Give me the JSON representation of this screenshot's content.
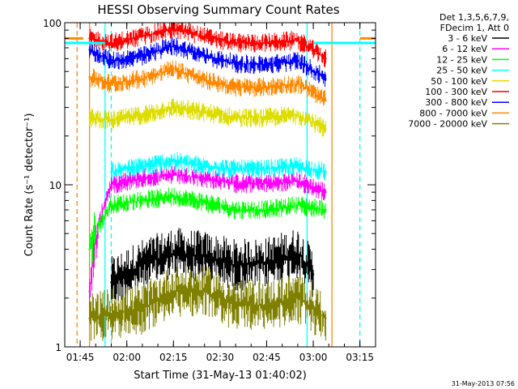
{
  "chart_data": {
    "type": "line",
    "title": "HESSI Observing Summary Count Rates",
    "xlabel": "Start Time (31-May-13 01:40:02)",
    "ylabel": "Count Rate (s⁻¹ detector⁻¹)",
    "yscale": "log",
    "ylim": [
      1,
      100
    ],
    "xlim": [
      "01:40:02",
      "03:20:02"
    ],
    "x_ticks": [
      "01:45",
      "02:00",
      "02:15",
      "02:30",
      "02:45",
      "03:00",
      "03:15"
    ],
    "y_ticks": [
      "1",
      "10",
      "100"
    ],
    "legend_header": [
      "Det 1,3,5,6,7,9,",
      "FDecim 1, Att 0"
    ],
    "legend_position": "right",
    "series": [
      {
        "name": "3 - 6 keV",
        "color": "#000000",
        "x": [
          "01:55",
          "02:05",
          "02:15",
          "02:25",
          "02:35",
          "02:45",
          "02:55",
          "03:00"
        ],
        "values": [
          2.5,
          3.2,
          3.8,
          3.6,
          3.2,
          3.3,
          3.8,
          2.8
        ]
      },
      {
        "name": "6 - 12 keV",
        "color": "#ff00ff",
        "x": [
          "01:48",
          "01:55",
          "02:05",
          "02:15",
          "02:25",
          "02:35",
          "02:45",
          "02:55",
          "03:04"
        ],
        "values": [
          2.2,
          10.0,
          11.0,
          11.5,
          11.0,
          10.2,
          10.2,
          10.5,
          9.0
        ]
      },
      {
        "name": "12 - 25 keV",
        "color": "#00ff00",
        "x": [
          "01:48",
          "01:55",
          "02:05",
          "02:15",
          "02:25",
          "02:35",
          "02:45",
          "02:55",
          "03:04"
        ],
        "values": [
          4.0,
          7.5,
          8.0,
          8.5,
          7.8,
          7.0,
          7.0,
          7.5,
          7.0
        ]
      },
      {
        "name": "25 - 50 keV",
        "color": "#00ffff",
        "x": [
          "01:55",
          "02:05",
          "02:15",
          "02:25",
          "02:35",
          "02:45",
          "02:55",
          "03:04"
        ],
        "values": [
          12.0,
          13.0,
          14.0,
          13.0,
          12.5,
          12.5,
          13.0,
          12.0
        ]
      },
      {
        "name": "50 - 100 keV",
        "color": "#dddd00",
        "x": [
          "01:48",
          "01:55",
          "02:05",
          "02:15",
          "02:25",
          "02:35",
          "02:45",
          "02:55",
          "03:04"
        ],
        "values": [
          26.0,
          25.0,
          27.0,
          30.0,
          28.0,
          26.0,
          26.0,
          27.0,
          22.0
        ]
      },
      {
        "name": "100 - 300 keV",
        "color": "#ff0000",
        "x": [
          "01:48",
          "01:55",
          "02:05",
          "02:15",
          "02:25",
          "02:35",
          "02:45",
          "02:55",
          "03:04"
        ],
        "values": [
          80.0,
          75.0,
          82.0,
          92.0,
          82.0,
          75.0,
          75.0,
          78.0,
          60.0
        ]
      },
      {
        "name": "300 - 800 keV",
        "color": "#0000ff",
        "x": [
          "01:48",
          "01:55",
          "02:05",
          "02:15",
          "02:25",
          "02:35",
          "02:45",
          "02:55",
          "03:04"
        ],
        "values": [
          68.0,
          58.0,
          62.0,
          72.0,
          62.0,
          56.0,
          55.0,
          58.0,
          45.0
        ]
      },
      {
        "name": "800 - 7000 keV",
        "color": "#ff8800",
        "x": [
          "01:48",
          "01:55",
          "02:05",
          "02:15",
          "02:25",
          "02:35",
          "02:45",
          "02:55",
          "03:04"
        ],
        "values": [
          46.0,
          42.0,
          45.0,
          52.0,
          44.0,
          40.0,
          40.0,
          42.0,
          33.0
        ]
      },
      {
        "name": "7000 - 20000 keV",
        "color": "#808000",
        "x": [
          "01:48",
          "01:55",
          "02:05",
          "02:15",
          "02:25",
          "02:35",
          "02:45",
          "02:55",
          "03:04"
        ],
        "values": [
          1.5,
          1.6,
          1.7,
          2.2,
          2.2,
          1.8,
          1.8,
          2.0,
          1.5
        ]
      }
    ],
    "attenuator_levels": [
      {
        "color": "#ff8800",
        "x": [
          "01:40:02",
          "01:46"
        ],
        "value": 80
      },
      {
        "color": "#00ffff",
        "x": [
          "01:40:02",
          "01:53"
        ],
        "value": 75
      },
      {
        "color": "#00ffff",
        "x": [
          "03:00",
          "03:20:02"
        ],
        "value": 75
      },
      {
        "color": "#ff8800",
        "x": [
          "03:15",
          "03:20:02"
        ],
        "value": 80
      }
    ],
    "vertical_markers": [
      {
        "color": "#ff8800",
        "x": "01:44",
        "style": "dashed"
      },
      {
        "color": "#ff8800",
        "x": "01:48",
        "style": "solid"
      },
      {
        "color": "#00ffff",
        "x": "01:53",
        "style": "solid"
      },
      {
        "color": "#00ffff",
        "x": "01:55",
        "style": "dashed"
      },
      {
        "color": "#00ffff",
        "x": "02:58",
        "style": "solid"
      },
      {
        "color": "#ff8800",
        "x": "03:06",
        "style": "solid"
      },
      {
        "color": "#00ffff",
        "x": "03:15",
        "style": "dashed"
      }
    ],
    "timestamp": "31-May-2013 07:56"
  }
}
